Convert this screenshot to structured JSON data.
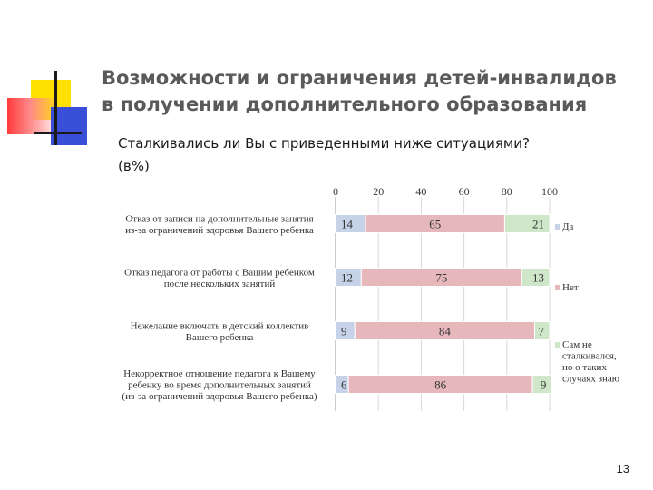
{
  "slide": {
    "title_line1": "Возможности и ограничения детей-инвалидов",
    "title_line2": "в получении дополнительного образования",
    "subtitle_line1": "Сталкивались ли Вы с приведенными ниже ситуациями?",
    "subtitle_line2": "(в%)",
    "page_number": "13"
  },
  "colors": {
    "yes": "#c6d2e8",
    "no": "#e6b8bc",
    "not_encountered": "#cfe6c8",
    "deco_yellow": "#ffe000",
    "deco_red": "#ff3a3a",
    "deco_blue": "#3a4fd8"
  },
  "chart_data": {
    "type": "bar",
    "orientation": "horizontal",
    "stacked": true,
    "categories": [
      [
        "Отказ от записи на дополнительные занятия",
        "из-за ограничений здоровья Вашего ребенка"
      ],
      [
        "Отказ педагога от работы с Вашим ребенком",
        "после нескольких занятий"
      ],
      [
        "Нежелание включать в детский коллектив",
        "Вашего ребенка"
      ],
      [
        "Некорректное отношение педагога к Вашему",
        "ребенку во время дополнительных занятий",
        "(из-за ограничений здоровья Вашего ребенка)"
      ]
    ],
    "series": [
      {
        "name": "Да",
        "values": [
          14,
          12,
          9,
          6
        ],
        "color": "#c6d2e8"
      },
      {
        "name": "Нет",
        "values": [
          65,
          75,
          84,
          86
        ],
        "color": "#e6b8bc"
      },
      {
        "name": [
          "Сам не",
          "сталкивался,",
          "но о таких",
          "случаях знаю"
        ],
        "values": [
          21,
          13,
          7,
          9
        ],
        "color": "#cfe6c8"
      }
    ],
    "xlim": [
      0,
      100
    ],
    "xticks": [
      "0",
      "20",
      "40",
      "60",
      "80",
      "100"
    ],
    "axis_position": "top",
    "grid": true,
    "legend_position": "right"
  }
}
